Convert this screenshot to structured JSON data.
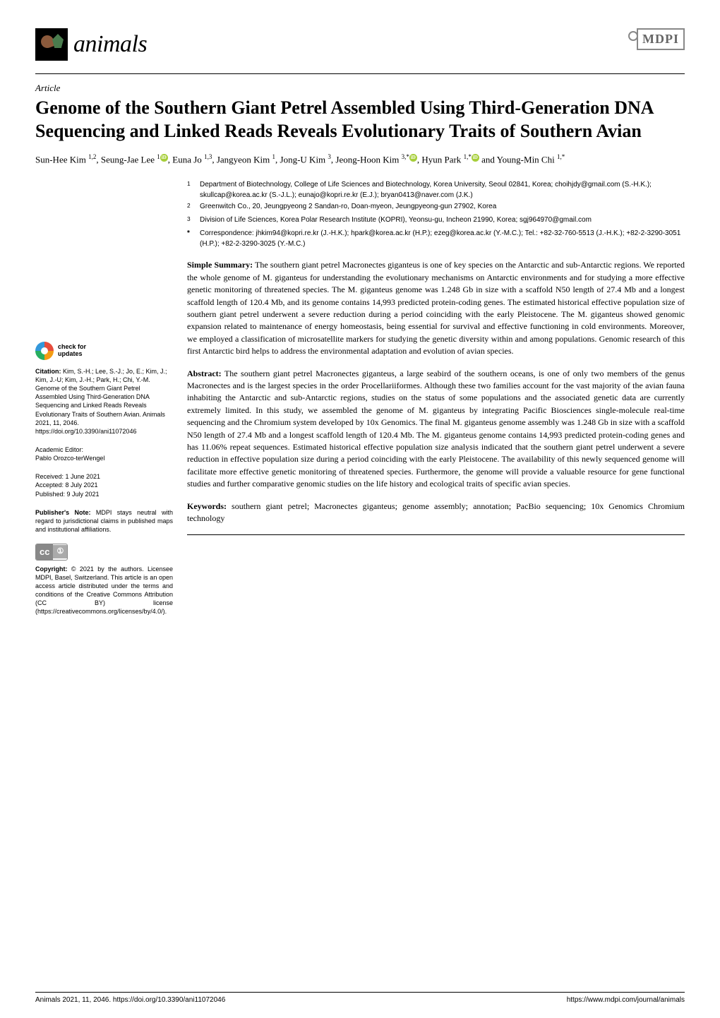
{
  "journal": {
    "name": "animals",
    "publisher_logo": "MDPI"
  },
  "article": {
    "type": "Article",
    "title": "Genome of the Southern Giant Petrel Assembled Using Third-Generation DNA Sequencing and Linked Reads Reveals Evolutionary Traits of Southern Avian",
    "authors_html": "Sun-Hee Kim <sup>1,2</sup>, Seung-Jae Lee <sup>1</sup><span class='orcid'>iD</span>, Euna Jo <sup>1,3</sup>, Jangyeon Kim <sup>1</sup>, Jong-U Kim <sup>3</sup>, Jeong-Hoon Kim <sup>3,*</sup><span class='orcid'>iD</span>, Hyun Park <sup>1,*</sup><span class='orcid'>iD</span> and Young-Min Chi <sup>1,*</sup>"
  },
  "affiliations": [
    {
      "num": "1",
      "text": "Department of Biotechnology, College of Life Sciences and Biotechnology, Korea University, Seoul 02841, Korea; choihjdy@gmail.com (S.-H.K.); skullcap@korea.ac.kr (S.-J.L.); eunajo@kopri.re.kr (E.J.); bryan0413@naver.com (J.K.)"
    },
    {
      "num": "2",
      "text": "Greenwitch Co., 20, Jeungpyeong 2 Sandan-ro, Doan-myeon, Jeungpyeong-gun 27902, Korea"
    },
    {
      "num": "3",
      "text": "Division of Life Sciences, Korea Polar Research Institute (KOPRI), Yeonsu-gu, Incheon 21990, Korea; sgj964970@gmail.com"
    },
    {
      "num": "*",
      "text": "Correspondence: jhkim94@kopri.re.kr (J.-H.K.); hpark@korea.ac.kr (H.P.); ezeg@korea.ac.kr (Y.-M.C.); Tel.: +82-32-760-5513 (J.-H.K.); +82-2-3290-3051 (H.P.); +82-2-3290-3025 (Y.-M.C.)"
    }
  ],
  "simple_summary": {
    "label": "Simple Summary:",
    "text": " The southern giant petrel Macronectes giganteus is one of key species on the Antarctic and sub-Antarctic regions. We reported the whole genome of M. giganteus for understanding the evolutionary mechanisms on Antarctic environments and for studying a more effective genetic monitoring of threatened species. The M. giganteus genome was 1.248 Gb in size with a scaffold N50 length of 27.4 Mb and a longest scaffold length of 120.4 Mb, and its genome contains 14,993 predicted protein-coding genes. The estimated historical effective population size of southern giant petrel underwent a severe reduction during a period coinciding with the early Pleistocene. The M. giganteus showed genomic expansion related to maintenance of energy homeostasis, being essential for survival and effective functioning in cold environments. Moreover, we employed a classification of microsatellite markers for studying the genetic diversity within and among populations. Genomic research of this first Antarctic bird helps to address the environmental adaptation and evolution of avian species."
  },
  "abstract": {
    "label": "Abstract:",
    "text": " The southern giant petrel Macronectes giganteus, a large seabird of the southern oceans, is one of only two members of the genus Macronectes and is the largest species in the order Procellariiformes. Although these two families account for the vast majority of the avian fauna inhabiting the Antarctic and sub-Antarctic regions, studies on the status of some populations and the associated genetic data are currently extremely limited. In this study, we assembled the genome of M. giganteus by integrating Pacific Biosciences single-molecule real-time sequencing and the Chromium system developed by 10x Genomics. The final M. giganteus genome assembly was 1.248 Gb in size with a scaffold N50 length of 27.4 Mb and a longest scaffold length of 120.4 Mb. The M. giganteus genome contains 14,993 predicted protein-coding genes and has 11.06% repeat sequences. Estimated historical effective population size analysis indicated that the southern giant petrel underwent a severe reduction in effective population size during a period coinciding with the early Pleistocene. The availability of this newly sequenced genome will facilitate more effective genetic monitoring of threatened species. Furthermore, the genome will provide a valuable resource for gene functional studies and further comparative genomic studies on the life history and ecological traits of specific avian species."
  },
  "keywords": {
    "label": "Keywords:",
    "text": " southern giant petrel; Macronectes giganteus; genome assembly; annotation; PacBio sequencing; 10x Genomics Chromium technology"
  },
  "sidebar": {
    "check_updates": "check for\nupdates",
    "citation_label": "Citation:",
    "citation": " Kim, S.-H.; Lee, S.-J.; Jo, E.; Kim, J.; Kim, J.-U; Kim, J.-H.; Park, H.; Chi, Y.-M. Genome of the Southern Giant Petrel Assembled Using Third-Generation DNA Sequencing and Linked Reads Reveals Evolutionary Traits of Southern Avian. Animals 2021, 11, 2046. https://doi.org/10.3390/ani11072046",
    "editor_label": "Academic Editor:",
    "editor": "Pablo Orozco-terWengel",
    "received": "Received: 1 June 2021",
    "accepted": "Accepted: 8 July 2021",
    "published": "Published: 9 July 2021",
    "publisher_note_label": "Publisher's Note:",
    "publisher_note": " MDPI stays neutral with regard to jurisdictional claims in published maps and institutional affiliations.",
    "cc_left": "cc",
    "cc_right": "①",
    "copyright_label": "Copyright:",
    "copyright": " © 2021 by the authors. Licensee MDPI, Basel, Switzerland. This article is an open access article distributed under the terms and conditions of the Creative Commons Attribution (CC BY) license (https://creativecommons.org/licenses/by/4.0/)."
  },
  "footer": {
    "left": "Animals 2021, 11, 2046. https://doi.org/10.3390/ani11072046",
    "right": "https://www.mdpi.com/journal/animals"
  },
  "colors": {
    "text": "#000000",
    "background": "#ffffff",
    "orcid_green": "#a6ce39",
    "mdpi_gray": "#888888"
  }
}
